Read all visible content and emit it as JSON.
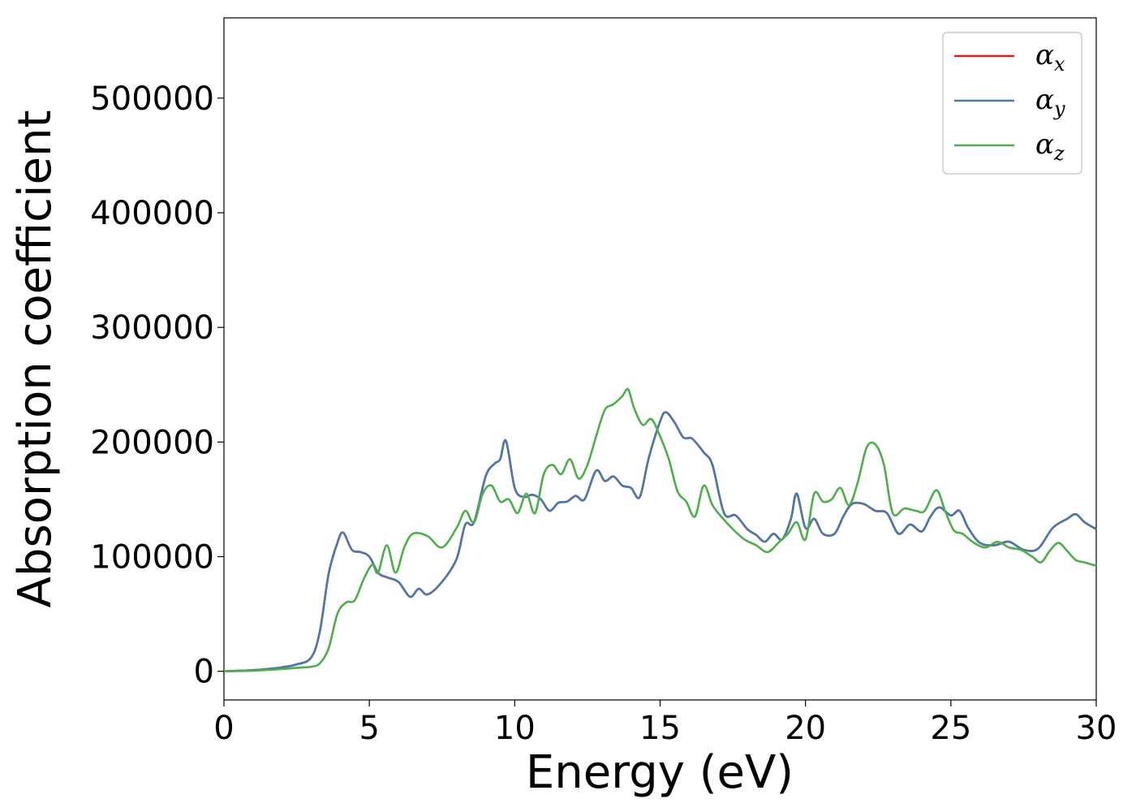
{
  "chart_data": {
    "type": "line",
    "title": "",
    "xlabel": "Energy (eV)",
    "ylabel": "Absorption coefficient",
    "xlim": [
      0,
      30
    ],
    "ylim": [
      -25000,
      570000
    ],
    "xticks": [
      0,
      5,
      10,
      15,
      20,
      25,
      30
    ],
    "yticks": [
      0,
      100000,
      200000,
      300000,
      400000,
      500000
    ],
    "grid": false,
    "legend": "top-right",
    "series": [
      {
        "name": "x",
        "color": "#e41a1c",
        "x": [
          0,
          1,
          1.5,
          2,
          2.5,
          3,
          3.3,
          3.6,
          3.9,
          4.1,
          4.4,
          4.7,
          5,
          5.3,
          5.6,
          6,
          6.4,
          6.7,
          7,
          7.5,
          8,
          8.3,
          8.6,
          9,
          9.3,
          9.5,
          9.7,
          10,
          10.3,
          10.6,
          10.9,
          11.2,
          11.5,
          11.8,
          12.1,
          12.4,
          12.8,
          13.1,
          13.4,
          13.7,
          14,
          14.3,
          14.6,
          15,
          15.2,
          15.5,
          15.8,
          16.1,
          16.5,
          16.8,
          17.2,
          17.6,
          18,
          18.3,
          18.6,
          18.9,
          19.2,
          19.5,
          19.7,
          20,
          20.3,
          20.6,
          21,
          21.3,
          21.6,
          22,
          22.4,
          22.8,
          23.2,
          23.6,
          24,
          24.3,
          24.6,
          25,
          25.3,
          25.6,
          26,
          26.5,
          27,
          27.5,
          28,
          28.5,
          29,
          29.3,
          29.6,
          30
        ],
        "values": [
          0,
          1000,
          2000,
          3500,
          6000,
          12000,
          35000,
          85000,
          112000,
          121000,
          106000,
          104000,
          100000,
          86000,
          82000,
          78000,
          65000,
          72000,
          67000,
          78000,
          98000,
          128000,
          130000,
          170000,
          181000,
          185000,
          201000,
          160000,
          152000,
          154000,
          150000,
          140000,
          147000,
          148000,
          153000,
          150000,
          175000,
          166000,
          170000,
          162000,
          160000,
          152000,
          185000,
          218000,
          226000,
          217000,
          204000,
          203000,
          191000,
          180000,
          138000,
          136000,
          124000,
          119000,
          113000,
          120000,
          115000,
          133000,
          155000,
          125000,
          133000,
          120000,
          120000,
          135000,
          146000,
          146000,
          140000,
          138000,
          120000,
          128000,
          122000,
          135000,
          143000,
          136000,
          140000,
          125000,
          112000,
          110000,
          113000,
          106000,
          107000,
          125000,
          133000,
          137000,
          130000,
          124000
        ]
      },
      {
        "name": "y",
        "color": "#4a7aab",
        "x": [
          0,
          1,
          1.5,
          2,
          2.5,
          3,
          3.3,
          3.6,
          3.9,
          4.1,
          4.4,
          4.7,
          5,
          5.3,
          5.6,
          6,
          6.4,
          6.7,
          7,
          7.5,
          8,
          8.3,
          8.6,
          9,
          9.3,
          9.5,
          9.7,
          10,
          10.3,
          10.6,
          10.9,
          11.2,
          11.5,
          11.8,
          12.1,
          12.4,
          12.8,
          13.1,
          13.4,
          13.7,
          14,
          14.3,
          14.6,
          15,
          15.2,
          15.5,
          15.8,
          16.1,
          16.5,
          16.8,
          17.2,
          17.6,
          18,
          18.3,
          18.6,
          18.9,
          19.2,
          19.5,
          19.7,
          20,
          20.3,
          20.6,
          21,
          21.3,
          21.6,
          22,
          22.4,
          22.8,
          23.2,
          23.6,
          24,
          24.3,
          24.6,
          25,
          25.3,
          25.6,
          26,
          26.5,
          27,
          27.5,
          28,
          28.5,
          29,
          29.3,
          29.6,
          30
        ],
        "values": [
          0,
          1000,
          2000,
          3500,
          6000,
          12000,
          35000,
          85000,
          112000,
          121000,
          106000,
          104000,
          100000,
          86000,
          82000,
          78000,
          65000,
          72000,
          67000,
          78000,
          98000,
          128000,
          130000,
          170000,
          181000,
          185000,
          201000,
          160000,
          152000,
          154000,
          150000,
          140000,
          147000,
          148000,
          153000,
          150000,
          175000,
          166000,
          170000,
          162000,
          160000,
          152000,
          185000,
          218000,
          226000,
          217000,
          204000,
          203000,
          191000,
          180000,
          138000,
          136000,
          124000,
          119000,
          113000,
          120000,
          115000,
          133000,
          155000,
          125000,
          133000,
          120000,
          120000,
          135000,
          146000,
          146000,
          140000,
          138000,
          120000,
          128000,
          122000,
          135000,
          143000,
          136000,
          140000,
          125000,
          112000,
          110000,
          113000,
          106000,
          107000,
          125000,
          133000,
          137000,
          130000,
          124000
        ]
      },
      {
        "name": "z",
        "color": "#4daf4a",
        "x": [
          0,
          1,
          2,
          2.5,
          3,
          3.3,
          3.6,
          3.9,
          4.2,
          4.5,
          4.8,
          5.1,
          5.3,
          5.6,
          5.9,
          6.2,
          6.5,
          7,
          7.5,
          8,
          8.3,
          8.6,
          8.9,
          9.2,
          9.5,
          9.8,
          10.1,
          10.4,
          10.7,
          11,
          11.3,
          11.6,
          11.9,
          12.2,
          12.5,
          12.8,
          13.1,
          13.4,
          13.7,
          13.9,
          14.1,
          14.4,
          14.7,
          15,
          15.3,
          15.6,
          15.9,
          16.2,
          16.5,
          16.8,
          17.1,
          17.5,
          17.9,
          18.3,
          18.7,
          19.1,
          19.4,
          19.7,
          20,
          20.3,
          20.6,
          20.9,
          21.2,
          21.5,
          21.8,
          22.1,
          22.4,
          22.7,
          23,
          23.4,
          23.8,
          24.1,
          24.5,
          24.8,
          25.1,
          25.4,
          25.8,
          26.2,
          26.6,
          27,
          27.4,
          27.8,
          28.1,
          28.4,
          28.7,
          29,
          29.3,
          29.6,
          30
        ],
        "values": [
          0,
          500,
          2000,
          3000,
          4000,
          7000,
          20000,
          50000,
          60000,
          62000,
          80000,
          93000,
          86000,
          110000,
          86000,
          108000,
          120000,
          118000,
          108000,
          125000,
          140000,
          130000,
          155000,
          162000,
          148000,
          150000,
          138000,
          155000,
          138000,
          172000,
          180000,
          172000,
          185000,
          168000,
          180000,
          205000,
          228000,
          233000,
          240000,
          246000,
          230000,
          215000,
          220000,
          205000,
          185000,
          157000,
          148000,
          135000,
          162000,
          145000,
          135000,
          124000,
          115000,
          110000,
          104000,
          113000,
          120000,
          130000,
          115000,
          155000,
          148000,
          150000,
          160000,
          145000,
          165000,
          195000,
          198000,
          180000,
          138000,
          142000,
          140000,
          140000,
          158000,
          140000,
          123000,
          120000,
          112000,
          108000,
          113000,
          108000,
          106000,
          100000,
          95000,
          105000,
          112000,
          105000,
          97000,
          95000,
          92000
        ]
      }
    ]
  }
}
